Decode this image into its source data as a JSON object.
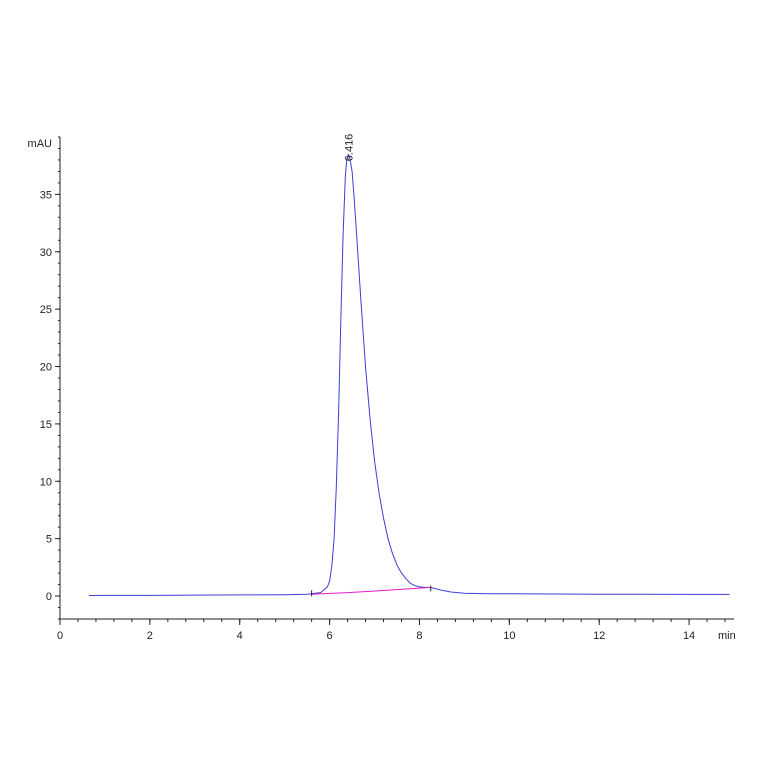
{
  "chart_data": {
    "type": "line",
    "title": "",
    "ylabel": "mAU",
    "xlabel": "min",
    "xlim": [
      0,
      15
    ],
    "ylim": [
      -2,
      40
    ],
    "x_ticks": [
      0,
      2,
      4,
      6,
      8,
      10,
      12,
      14
    ],
    "y_ticks": [
      0,
      5,
      10,
      15,
      20,
      25,
      30,
      35
    ],
    "grid": false,
    "legend": "none",
    "series": [
      {
        "color": "#3d3dd6",
        "points": [
          [
            0.65,
            0.05
          ],
          [
            1.0,
            0.06
          ],
          [
            2.0,
            0.06
          ],
          [
            3.0,
            0.08
          ],
          [
            4.0,
            0.1
          ],
          [
            5.0,
            0.12
          ],
          [
            5.5,
            0.15
          ],
          [
            5.8,
            0.3
          ],
          [
            5.95,
            0.8
          ],
          [
            6.0,
            1.3
          ],
          [
            6.05,
            2.6
          ],
          [
            6.1,
            5.0
          ],
          [
            6.15,
            9.5
          ],
          [
            6.2,
            16.0
          ],
          [
            6.25,
            24.0
          ],
          [
            6.3,
            31.5
          ],
          [
            6.35,
            36.5
          ],
          [
            6.38,
            38.0
          ],
          [
            6.416,
            38.5
          ],
          [
            6.45,
            38.2
          ],
          [
            6.5,
            37.0
          ],
          [
            6.55,
            34.5
          ],
          [
            6.6,
            31.5
          ],
          [
            6.7,
            25.5
          ],
          [
            6.8,
            20.0
          ],
          [
            6.9,
            15.5
          ],
          [
            7.0,
            11.8
          ],
          [
            7.1,
            9.0
          ],
          [
            7.2,
            6.8
          ],
          [
            7.3,
            5.0
          ],
          [
            7.4,
            3.7
          ],
          [
            7.5,
            2.7
          ],
          [
            7.6,
            2.0
          ],
          [
            7.7,
            1.5
          ],
          [
            7.8,
            1.1
          ],
          [
            7.9,
            0.9
          ],
          [
            8.0,
            0.8
          ],
          [
            8.1,
            0.75
          ],
          [
            8.2,
            0.75
          ],
          [
            8.3,
            0.7
          ],
          [
            8.5,
            0.5
          ],
          [
            8.7,
            0.35
          ],
          [
            9.0,
            0.25
          ],
          [
            9.5,
            0.2
          ],
          [
            10.0,
            0.2
          ],
          [
            11.0,
            0.18
          ],
          [
            12.0,
            0.16
          ],
          [
            13.0,
            0.15
          ],
          [
            14.0,
            0.14
          ],
          [
            14.9,
            0.14
          ]
        ]
      },
      {
        "color": "#e020c8",
        "points": [
          [
            5.6,
            0.15
          ],
          [
            6.4,
            0.3
          ],
          [
            7.2,
            0.48
          ],
          [
            8.25,
            0.75
          ]
        ]
      }
    ],
    "annotations": [
      {
        "text": "6.416",
        "x": 6.416,
        "y": 38.5
      }
    ]
  }
}
